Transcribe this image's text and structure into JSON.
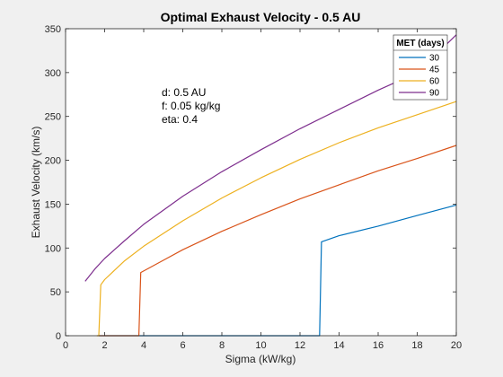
{
  "chart_data": {
    "type": "line",
    "title": "Optimal Exhaust Velocity - 0.5 AU",
    "xlabel": "Sigma (kW/kg)",
    "ylabel": "Exhaust Velocity (km/s)",
    "xlim": [
      0,
      20
    ],
    "ylim": [
      0,
      350
    ],
    "xticks": [
      0,
      2,
      4,
      6,
      8,
      10,
      12,
      14,
      16,
      18,
      20
    ],
    "yticks": [
      0,
      50,
      100,
      150,
      200,
      250,
      300,
      350
    ],
    "grid": false,
    "legend": {
      "title": "MET (days)",
      "placement": "top-right"
    },
    "annotations": [
      "d:  0.5 AU",
      "f: 0.05 kg/kg",
      "eta: 0.4"
    ],
    "series": [
      {
        "name": "30",
        "color": "#0072BD",
        "points": [
          [
            1.7,
            0
          ],
          [
            13.0,
            0
          ],
          [
            13.1,
            107
          ],
          [
            14,
            114
          ],
          [
            16,
            125
          ],
          [
            18,
            137
          ],
          [
            20,
            149
          ]
        ]
      },
      {
        "name": "45",
        "color": "#D95319",
        "points": [
          [
            1.7,
            0
          ],
          [
            3.75,
            0
          ],
          [
            3.85,
            72
          ],
          [
            5,
            86
          ],
          [
            6,
            98
          ],
          [
            8,
            119
          ],
          [
            10,
            138
          ],
          [
            12,
            156
          ],
          [
            14,
            172
          ],
          [
            16,
            188
          ],
          [
            18,
            202
          ],
          [
            20,
            217
          ]
        ]
      },
      {
        "name": "60",
        "color": "#EDB120",
        "points": [
          [
            1.6,
            0
          ],
          [
            1.7,
            0
          ],
          [
            1.8,
            58
          ],
          [
            2,
            64
          ],
          [
            3,
            85
          ],
          [
            4,
            102
          ],
          [
            6,
            131
          ],
          [
            8,
            157
          ],
          [
            10,
            180
          ],
          [
            12,
            201
          ],
          [
            14,
            220
          ],
          [
            16,
            237
          ],
          [
            18,
            252
          ],
          [
            20,
            267
          ]
        ]
      },
      {
        "name": "90",
        "color": "#7E2F8E",
        "points": [
          [
            1.0,
            62
          ],
          [
            1.5,
            76
          ],
          [
            2,
            88
          ],
          [
            3,
            108
          ],
          [
            4,
            127
          ],
          [
            6,
            159
          ],
          [
            8,
            187
          ],
          [
            10,
            212
          ],
          [
            12,
            236
          ],
          [
            14,
            258
          ],
          [
            16,
            280
          ],
          [
            18,
            300
          ],
          [
            20,
            343
          ]
        ]
      }
    ]
  }
}
